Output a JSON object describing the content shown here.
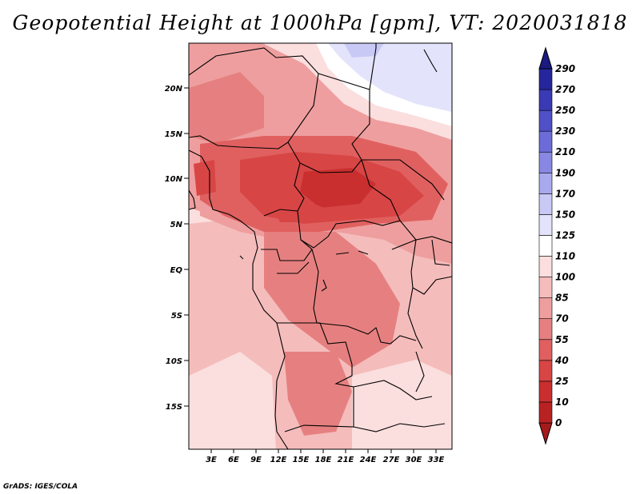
{
  "title": "Geopotential Height at 1000hPa [gpm], VT: 2020031818",
  "credit": "GrADS: IGES/COLA",
  "map": {
    "variable": "Geopotential Height",
    "level": "1000hPa",
    "units": "gpm",
    "lat_labels": [
      "20N",
      "15N",
      "10N",
      "5N",
      "EQ",
      "5S",
      "10S",
      "15S"
    ],
    "lon_labels": [
      "3E",
      "6E",
      "9E",
      "12E",
      "15E",
      "18E",
      "21E",
      "24E",
      "27E",
      "30E",
      "33E"
    ]
  },
  "colorbar": {
    "levels": [
      "0",
      "10",
      "25",
      "40",
      "55",
      "70",
      "85",
      "100",
      "110",
      "125",
      "150",
      "170",
      "190",
      "210",
      "230",
      "250",
      "270",
      "290"
    ],
    "colors": [
      "#a51a1a",
      "#b82222",
      "#c92f2f",
      "#d84545",
      "#e06060",
      "#e68080",
      "#ee9e9e",
      "#f5bcbc",
      "#fbdede",
      "#ffffff",
      "#e3e3fb",
      "#c9c9f6",
      "#a9a9ee",
      "#8888e4",
      "#6c6cd8",
      "#5050c8",
      "#3a3ab4",
      "#26269c",
      "#1a1a80"
    ]
  }
}
